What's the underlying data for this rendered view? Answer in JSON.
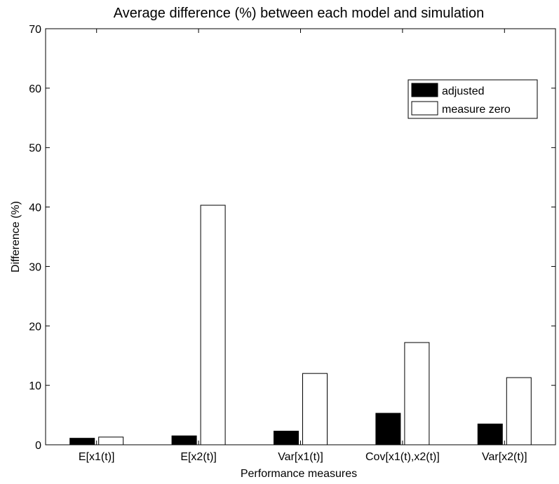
{
  "colors": {
    "adjusted": "#000000",
    "measure_zero": "#ffffff",
    "axis": "#000000",
    "background": "#ffffff"
  },
  "chart_data": {
    "type": "bar",
    "title": "Average difference (%) between each model and simulation",
    "xlabel": "Performance measures",
    "ylabel": "Difference (%)",
    "categories": [
      "E[x1(t)]",
      "E[x2(t)]",
      "Var[x1(t)]",
      "Cov[x1(t),x2(t)]",
      "Var[x2(t)]"
    ],
    "series": [
      {
        "name": "adjusted",
        "values": [
          1.1,
          1.5,
          2.3,
          5.3,
          3.5
        ]
      },
      {
        "name": "measure zero",
        "values": [
          1.3,
          40.3,
          12.0,
          17.2,
          11.3
        ]
      }
    ],
    "ylim": [
      0,
      70
    ],
    "yticks": [
      0,
      10,
      20,
      30,
      40,
      50,
      60,
      70
    ],
    "grid": false,
    "legend": "top-right"
  }
}
